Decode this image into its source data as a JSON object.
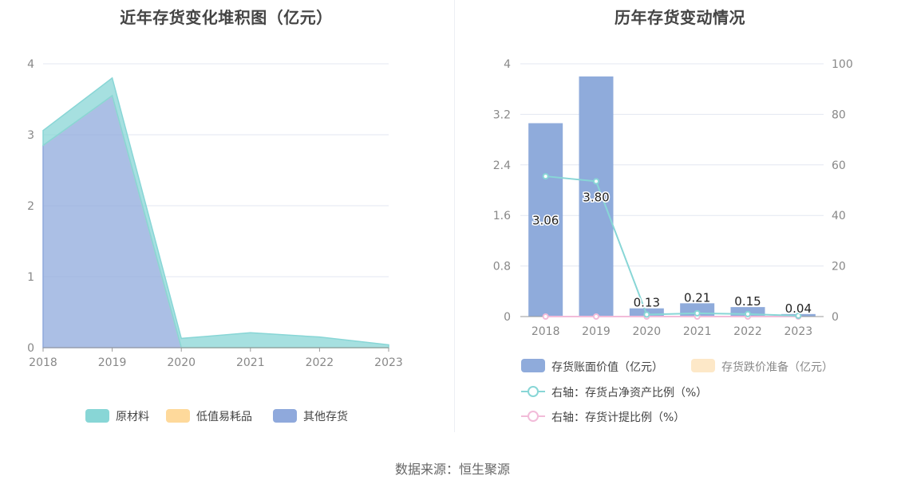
{
  "left_chart": {
    "title": "近年存货变化堆积图（亿元）",
    "chart_data": {
      "type": "area",
      "stacked": true,
      "x": [
        "2018",
        "2019",
        "2020",
        "2021",
        "2022",
        "2023"
      ],
      "ylim": [
        0,
        4
      ],
      "yticks": [
        "0",
        "1",
        "2",
        "3",
        "4"
      ],
      "grid": true,
      "legend_position": "bottom",
      "series": [
        {
          "name": "其他存货",
          "color": "#8fa9dc",
          "values": [
            2.85,
            3.55,
            0.0,
            0.0,
            0.0,
            0.0
          ]
        },
        {
          "name": "低值易耗品",
          "color": "#fed99b",
          "values": [
            0.0,
            0.0,
            0.0,
            0.0,
            0.0,
            0.0
          ]
        },
        {
          "name": "原材料",
          "color": "#88d6d6",
          "values": [
            0.21,
            0.25,
            0.13,
            0.21,
            0.15,
            0.04
          ]
        }
      ],
      "legend": [
        "原材料",
        "低值易耗品",
        "其他存货"
      ]
    }
  },
  "right_chart": {
    "title": "历年存货变动情况",
    "chart_data": {
      "type": "bar",
      "categories": [
        "2018",
        "2019",
        "2020",
        "2021",
        "2022",
        "2023"
      ],
      "ylim": [
        0,
        4
      ],
      "yticks": [
        "0",
        "0.8",
        "1.6",
        "2.4",
        "3.2",
        "4"
      ],
      "y2lim": [
        0,
        100
      ],
      "y2ticks": [
        "0",
        "20",
        "40",
        "60",
        "80",
        "100"
      ],
      "grid": true,
      "legend_position": "bottom",
      "series": [
        {
          "name": "存货账面价值（亿元）",
          "kind": "bar",
          "axis": "left",
          "color": "#8fabdb",
          "values": [
            3.06,
            3.8,
            0.13,
            0.21,
            0.15,
            0.04
          ],
          "labels": [
            "3.06",
            "3.80",
            "0.13",
            "0.21",
            "0.15",
            "0.04"
          ]
        },
        {
          "name": "存货跌价准备（亿元）",
          "kind": "bar",
          "axis": "left",
          "color": "#fde8c8",
          "values": [
            0,
            0,
            0,
            0,
            0,
            0
          ]
        },
        {
          "name": "右轴：存货占净资产比例（%）",
          "kind": "line",
          "axis": "right",
          "color": "#88d6d6",
          "values": [
            55.5,
            53.5,
            0.8,
            1.3,
            1.0,
            0.3
          ]
        },
        {
          "name": "右轴：存货计提比例（%）",
          "kind": "line",
          "axis": "right",
          "color": "#f2bcd9",
          "values": [
            0,
            0,
            0,
            0,
            0,
            0
          ]
        }
      ]
    }
  },
  "source": "数据来源：恒生聚源"
}
